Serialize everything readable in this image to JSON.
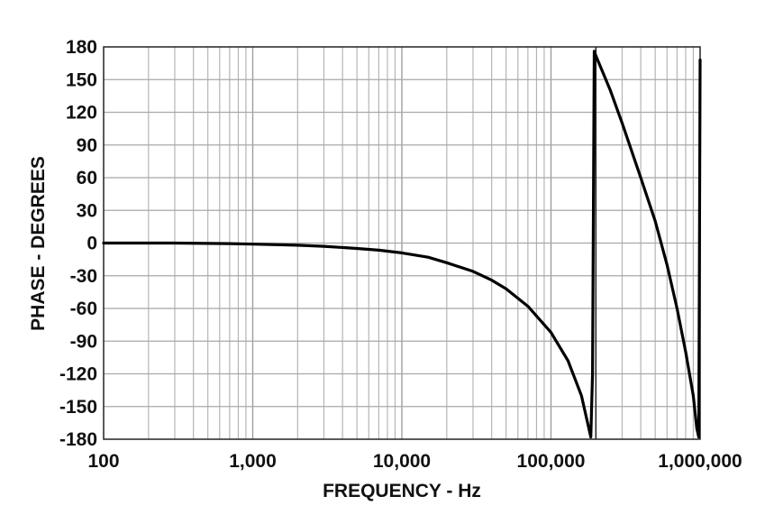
{
  "chart_data": {
    "type": "line",
    "title": "",
    "xlabel": "FREQUENCY - Hz",
    "ylabel": "PHASE - DEGREES",
    "xscale": "log",
    "xlim": [
      100,
      1000000
    ],
    "ylim": [
      -180,
      180
    ],
    "grid": true,
    "legend": null,
    "x_tick_labels": [
      "100",
      "1,000",
      "10,000",
      "100,000",
      "1,000,000"
    ],
    "x_ticks": [
      100,
      1000,
      10000,
      100000,
      1000000
    ],
    "y_tick_labels": [
      "180",
      "150",
      "120",
      "90",
      "60",
      "30",
      "0",
      "-30",
      "-60",
      "-90",
      "-120",
      "-150",
      "-180"
    ],
    "y_ticks": [
      180,
      150,
      120,
      90,
      60,
      30,
      0,
      -30,
      -60,
      -90,
      -120,
      -150,
      -180
    ],
    "series": [
      {
        "name": "Phase",
        "color": "#000000",
        "x": [
          100,
          300,
          700,
          1000,
          2000,
          3000,
          5000,
          7000,
          10000,
          15000,
          20000,
          30000,
          40000,
          50000,
          70000,
          100000,
          130000,
          160000,
          185000,
          190000,
          195000,
          200000,
          250000,
          300000,
          400000,
          500000,
          600000,
          700000,
          800000,
          900000,
          950000,
          980000,
          990000,
          1000000
        ],
        "values": [
          0,
          0,
          -0.5,
          -1,
          -2,
          -3,
          -5,
          -6.5,
          -9,
          -13,
          -18,
          -26,
          -34,
          -42,
          -58,
          -82,
          -108,
          -140,
          -178,
          -120,
          176,
          172,
          140,
          110,
          60,
          20,
          -20,
          -60,
          -100,
          -140,
          -170,
          -178,
          0,
          168
        ]
      }
    ],
    "annotations": [
      {
        "type": "vertical-line",
        "x": 200000
      }
    ]
  }
}
